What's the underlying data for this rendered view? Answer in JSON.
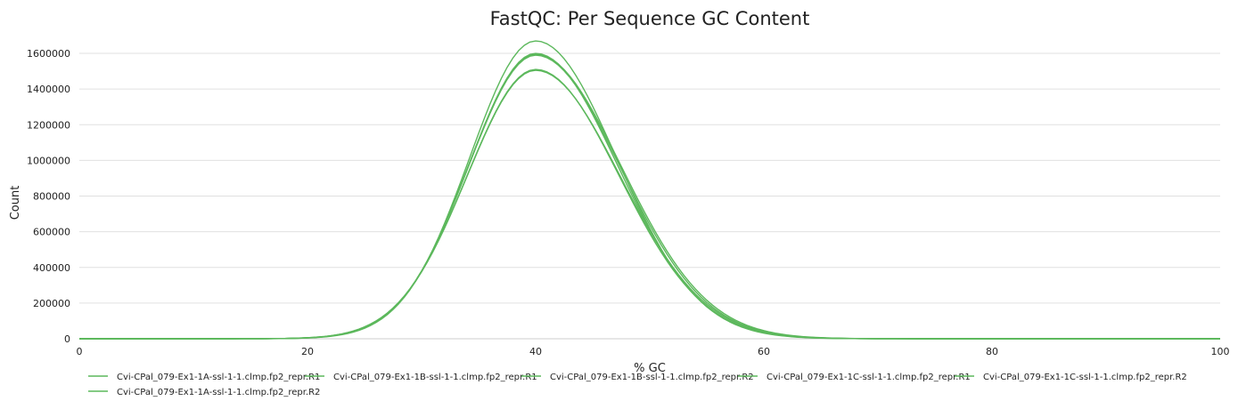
{
  "chart_data": {
    "type": "line",
    "title": "FastQC: Per Sequence GC Content",
    "xlabel": "% GC",
    "ylabel": "Count",
    "xlim": [
      0,
      100
    ],
    "ylim": [
      0,
      1700000
    ],
    "x_ticks": [
      "0",
      "20",
      "40",
      "60",
      "80",
      "100"
    ],
    "y_ticks": [
      "0",
      "200000",
      "400000",
      "600000",
      "800000",
      "1000000",
      "1200000",
      "1400000",
      "1600000"
    ],
    "grid": "horizontal",
    "legend_position": "bottom",
    "line_color": "#5cb85c",
    "series": [
      {
        "name": "Cvi-CPal_079-Ex1-1A-ssl-1-1.clmp.fp2_repr.R1",
        "peak": 1510000,
        "peak_x": 40,
        "sigma_left": 6.0,
        "sigma_right": 7.3
      },
      {
        "name": "Cvi-CPal_079-Ex1-1B-ssl-1-1.clmp.fp2_repr.R1",
        "peak": 1595000,
        "peak_x": 40,
        "sigma_left": 5.9,
        "sigma_right": 7.5
      },
      {
        "name": "Cvi-CPal_079-Ex1-1B-ssl-1-1.clmp.fp2_repr.R2",
        "peak": 1670000,
        "peak_x": 40,
        "sigma_left": 5.8,
        "sigma_right": 7.1
      },
      {
        "name": "Cvi-CPal_079-Ex1-1C-ssl-1-1.clmp.fp2_repr.R1",
        "peak": 1590000,
        "peak_x": 40,
        "sigma_left": 5.9,
        "sigma_right": 7.4
      },
      {
        "name": "Cvi-CPal_079-Ex1-1C-ssl-1-1.clmp.fp2_repr.R2",
        "peak": 1505000,
        "peak_x": 40,
        "sigma_left": 6.0,
        "sigma_right": 7.4
      },
      {
        "name": "Cvi-CPal_079-Ex1-1A-ssl-1-1.clmp.fp2_repr.R2",
        "peak": 1600000,
        "peak_x": 40,
        "sigma_left": 5.9,
        "sigma_right": 7.2
      }
    ]
  }
}
